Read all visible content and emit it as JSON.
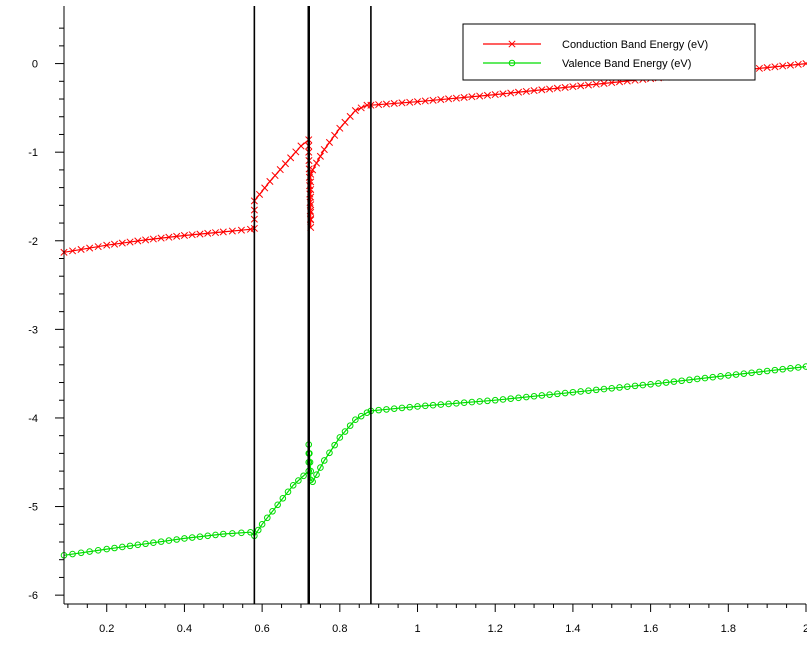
{
  "chart_data": {
    "type": "line",
    "title": "",
    "xlabel": "",
    "ylabel": "",
    "xlim": [
      0.09,
      2.0
    ],
    "ylim": [
      -6.1,
      0.65
    ],
    "x_ticks": [
      0.2,
      0.4,
      0.6,
      0.8,
      1,
      1.2,
      1.4,
      1.6,
      1.8,
      2
    ],
    "x_tick_labels": [
      "0.2",
      "0.4",
      "0.6",
      "0.8",
      "1",
      "1.2",
      "1.4",
      "1.6",
      "1.8",
      "2"
    ],
    "y_ticks": [
      0,
      -1,
      -2,
      -3,
      -4,
      -5,
      -6
    ],
    "y_tick_labels": [
      "0",
      "-1",
      "-2",
      "-3",
      "-4",
      "-5",
      "-6"
    ],
    "grid": false,
    "legend_position": "top-right",
    "vertical_lines": [
      0.58,
      0.72,
      0.88
    ],
    "series": [
      {
        "name": "Conduction Band Energy (eV)",
        "color": "#ff0000",
        "marker": "x",
        "x": [
          0.09,
          0.2,
          0.3,
          0.4,
          0.5,
          0.57,
          0.58,
          0.58,
          0.62,
          0.66,
          0.7,
          0.72,
          0.72,
          0.725,
          0.725,
          0.73,
          0.76,
          0.8,
          0.84,
          0.87,
          0.88,
          1.0,
          1.2,
          1.4,
          1.6,
          1.8,
          2.0
        ],
        "y": [
          -2.13,
          -2.05,
          -1.99,
          -1.94,
          -1.9,
          -1.87,
          -1.86,
          -1.55,
          -1.33,
          -1.13,
          -0.93,
          -0.86,
          -1.0,
          -1.85,
          -1.25,
          -1.2,
          -0.97,
          -0.73,
          -0.53,
          -0.47,
          -0.47,
          -0.43,
          -0.35,
          -0.26,
          -0.17,
          -0.09,
          0.0
        ]
      },
      {
        "name": "Valence Band Energy (eV)",
        "color": "#00dd00",
        "marker": "o",
        "x": [
          0.09,
          0.2,
          0.3,
          0.4,
          0.5,
          0.57,
          0.58,
          0.6,
          0.64,
          0.68,
          0.72,
          0.72,
          0.725,
          0.725,
          0.73,
          0.76,
          0.8,
          0.84,
          0.87,
          0.88,
          1.0,
          1.2,
          1.4,
          1.6,
          1.8,
          2.0
        ],
        "y": [
          -5.55,
          -5.48,
          -5.42,
          -5.36,
          -5.31,
          -5.29,
          -5.33,
          -5.2,
          -4.98,
          -4.76,
          -4.6,
          -4.3,
          -4.6,
          -4.7,
          -4.72,
          -4.48,
          -4.22,
          -4.02,
          -3.94,
          -3.92,
          -3.87,
          -3.8,
          -3.71,
          -3.62,
          -3.52,
          -3.42
        ]
      }
    ]
  }
}
